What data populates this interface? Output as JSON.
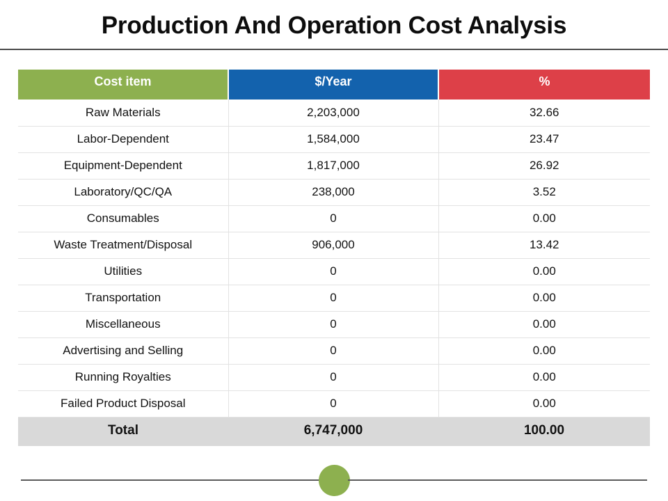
{
  "title": "Production And Operation Cost Analysis",
  "colors": {
    "header_cost_item": "#8db04f",
    "header_per_year": "#1362ad",
    "header_percent": "#dd4048",
    "total_row_bg": "#d9d9d9",
    "footer_dot": "#8db04f"
  },
  "table": {
    "headers": [
      "Cost item",
      "$/Year",
      "%"
    ],
    "rows": [
      [
        "Raw Materials",
        "2,203,000",
        "32.66"
      ],
      [
        "Labor-Dependent",
        "1,584,000",
        "23.47"
      ],
      [
        "Equipment-Dependent",
        "1,817,000",
        "26.92"
      ],
      [
        "Laboratory/QC/QA",
        "238,000",
        "3.52"
      ],
      [
        "Consumables",
        "0",
        "0.00"
      ],
      [
        "Waste Treatment/Disposal",
        "906,000",
        "13.42"
      ],
      [
        "Utilities",
        "0",
        "0.00"
      ],
      [
        "Transportation",
        "0",
        "0.00"
      ],
      [
        "Miscellaneous",
        "0",
        "0.00"
      ],
      [
        "Advertising and Selling",
        "0",
        "0.00"
      ],
      [
        "Running Royalties",
        "0",
        "0.00"
      ],
      [
        "Failed Product Disposal",
        "0",
        "0.00"
      ]
    ],
    "total": [
      "Total",
      "6,747,000",
      "100.00"
    ]
  }
}
